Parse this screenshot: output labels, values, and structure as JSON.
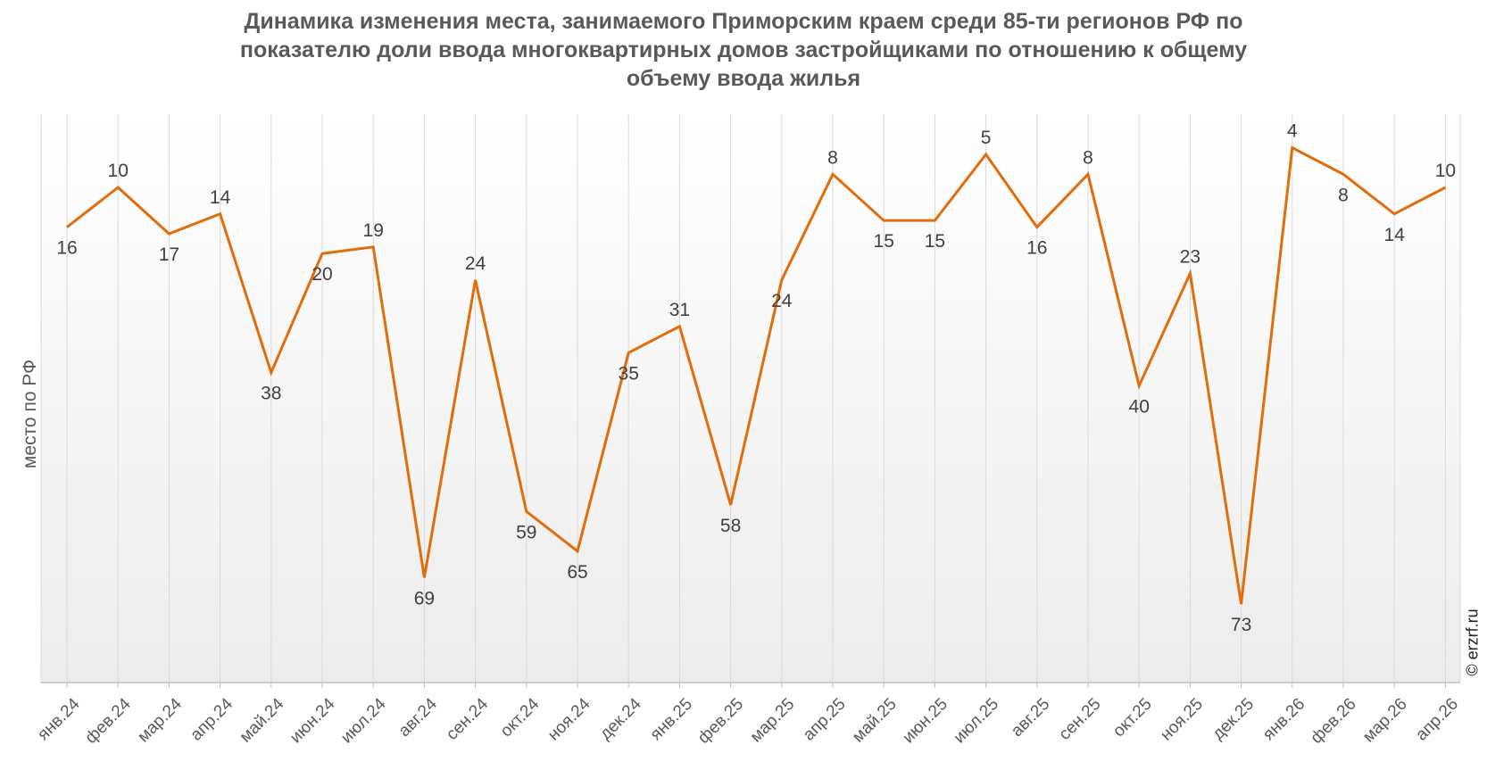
{
  "title_lines": [
    "Динамика изменения места, занимаемого Приморским краем среди 85-ти регионов РФ по",
    "показателю доли ввода многоквартирных домов застройщиками по отношению к общему",
    "объему ввода жилья"
  ],
  "watermark": "© erzrf.ru",
  "chart_data": {
    "type": "line",
    "title": "Динамика изменения места, занимаемого Приморским краем среди 85-ти регионов РФ по показателю доли ввода многоквартирных домов застройщиками по отношению к общему объему ввода жилья",
    "xlabel": "",
    "ylabel": "место по РФ",
    "y_inverted": true,
    "ylim": [
      0,
      85
    ],
    "grid": "vertical",
    "categories": [
      "янв.24",
      "фев.24",
      "мар.24",
      "апр.24",
      "май.24",
      "июн.24",
      "июл.24",
      "авг.24",
      "сен.24",
      "окт.24",
      "ноя.24",
      "дек.24",
      "янв.25",
      "фев.25",
      "мар.25",
      "апр.25",
      "май.25",
      "июн.25",
      "июл.25",
      "авг.25",
      "сен.25",
      "окт.25",
      "ноя.25",
      "дек.25",
      "янв.26",
      "фев.26",
      "мар.26",
      "апр.26"
    ],
    "values": [
      16,
      10,
      17,
      14,
      38,
      20,
      19,
      69,
      24,
      59,
      65,
      35,
      31,
      58,
      24,
      8,
      15,
      15,
      5,
      16,
      8,
      40,
      23,
      73,
      4,
      8,
      14,
      10
    ],
    "line_color": "#E36C0A",
    "label_color": "#404040"
  }
}
